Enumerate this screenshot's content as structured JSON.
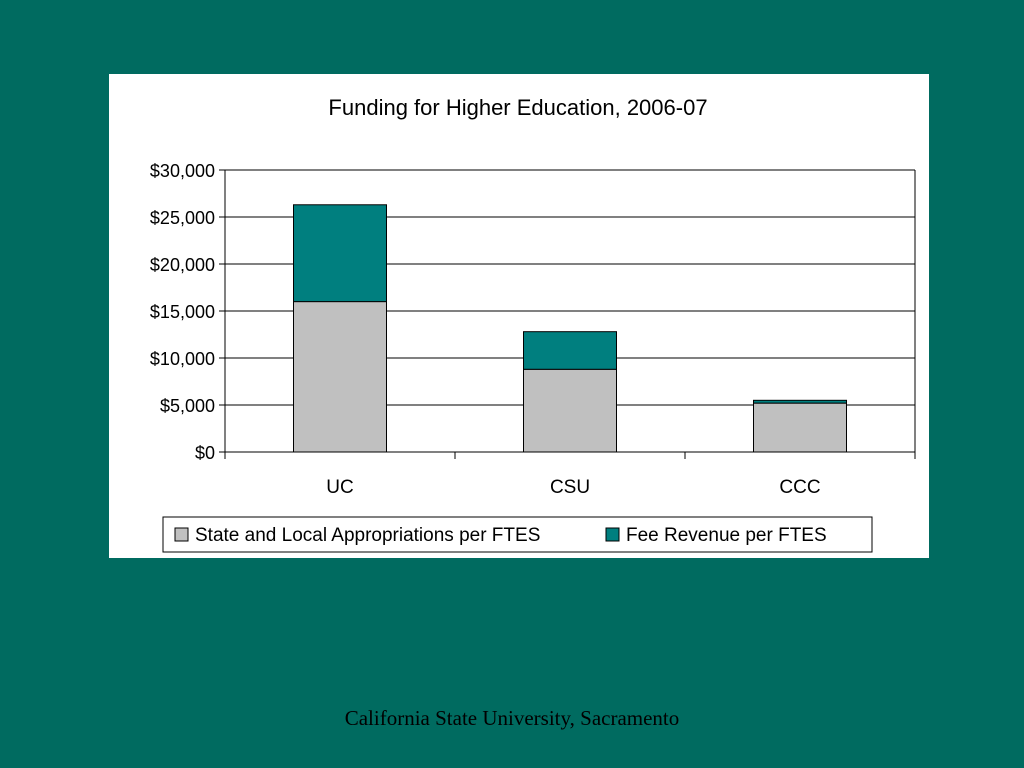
{
  "slide": {
    "footer": "California State University, Sacramento",
    "background_color": "#006b60"
  },
  "chart_data": {
    "type": "bar",
    "stacked": true,
    "title": "Funding for Higher Education, 2006-07",
    "categories": [
      "UC",
      "CSU",
      "CCC"
    ],
    "series": [
      {
        "name": "State and Local Appropriations per FTES",
        "color": "#c0c0c0",
        "values": [
          16000,
          8800,
          5200
        ]
      },
      {
        "name": "Fee Revenue per FTES",
        "color": "#007f7f",
        "values": [
          10300,
          4000,
          300
        ]
      }
    ],
    "y_ticks": [
      "$0",
      "$5,000",
      "$10,000",
      "$15,000",
      "$20,000",
      "$25,000",
      "$30,000"
    ],
    "ylim": [
      0,
      30000
    ],
    "grid": true,
    "legend_position": "bottom"
  }
}
